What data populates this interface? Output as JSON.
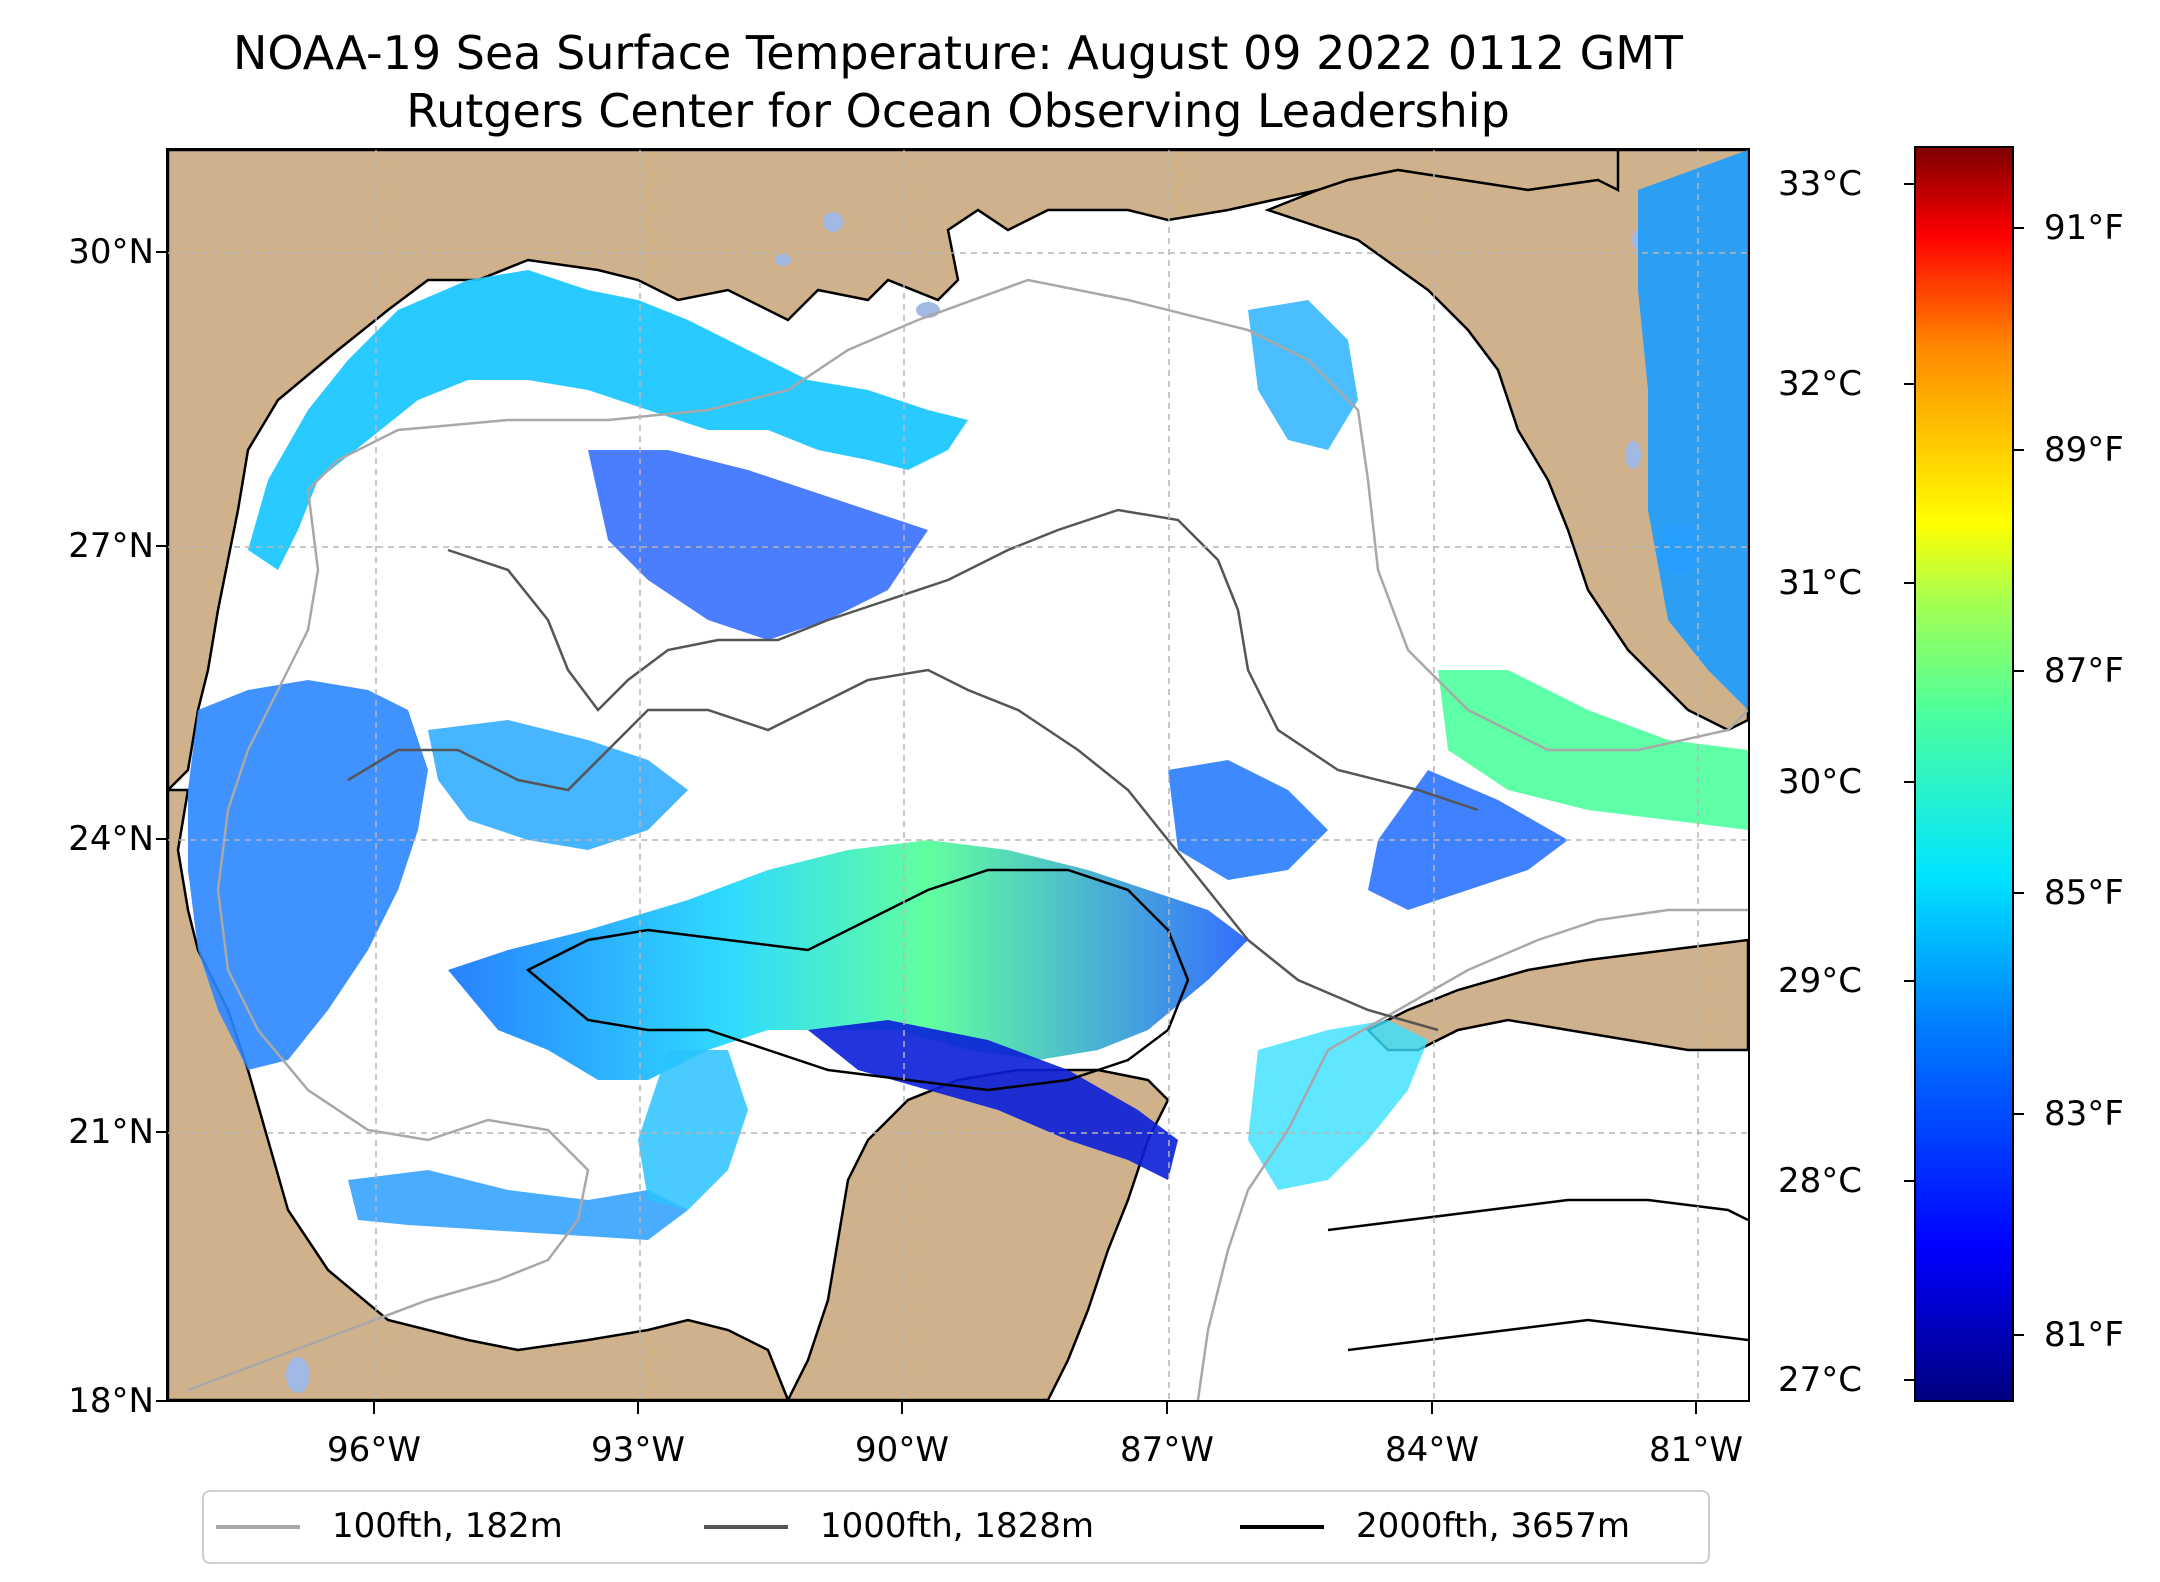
{
  "title": {
    "line1": "NOAA-19 Sea Surface Temperature: August 09 2022 0112 GMT",
    "line2": "Rutgers Center for Ocean Observing Leadership"
  },
  "map": {
    "projection": "plate carree",
    "lon_range_deg": [
      -98.0,
      -80.3
    ],
    "lat_range_deg": [
      18.0,
      31.0
    ],
    "gridlines": true,
    "lat_labels": [
      "30°N",
      "27°N",
      "24°N",
      "21°N",
      "18°N"
    ],
    "lon_labels": [
      "96°W",
      "93°W",
      "90°W",
      "87°W",
      "84°W",
      "81°W"
    ],
    "colors": {
      "land": "#cfb28b",
      "lakes": "#a2b9e3",
      "no_data": "#ffffff",
      "gridline": "#b5b5b5",
      "coastline": "#000000"
    }
  },
  "colorbar": {
    "colormap": "jet",
    "celsius_range": [
      26.9,
      33.2
    ],
    "celsius_labels": [
      "33°C",
      "32°C",
      "31°C",
      "30°C",
      "29°C",
      "28°C",
      "27°C"
    ],
    "fahrenheit_labels": [
      "91°F",
      "89°F",
      "87°F",
      "85°F",
      "83°F",
      "81°F"
    ]
  },
  "legend": {
    "placement": "bottom, below map",
    "items": [
      {
        "label": "100fth, 182m",
        "color": "#a8a8a8"
      },
      {
        "label": "1000fth, 1828m",
        "color": "#555555"
      },
      {
        "label": "2000fth, 3657m",
        "color": "#000000"
      }
    ]
  }
}
